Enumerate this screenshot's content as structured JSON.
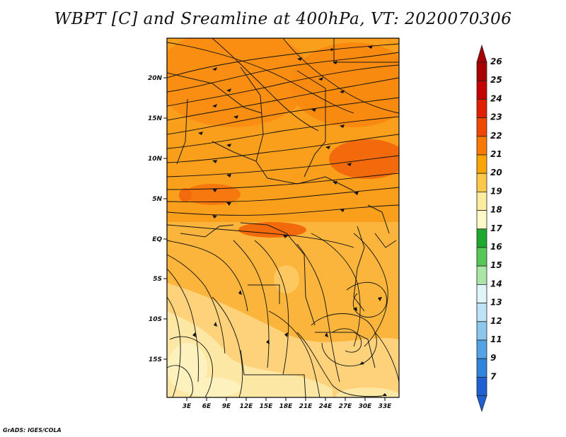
{
  "title": "WBPT [C] and Sreamline at 400hPa, VT: 2020070306",
  "credit": "GrADS: IGES/COLA",
  "map": {
    "lat_labels": [
      "20N",
      "15N",
      "10N",
      "5N",
      "EQ",
      "5S",
      "10S",
      "15S"
    ],
    "lon_labels": [
      "3E",
      "6E",
      "9E",
      "12E",
      "15E",
      "18E",
      "21E",
      "24E",
      "27E",
      "30E",
      "33E"
    ]
  },
  "colorbar": {
    "labels": [
      "26",
      "25",
      "24",
      "23",
      "22",
      "21",
      "20",
      "19",
      "18",
      "17",
      "16",
      "15",
      "14",
      "13",
      "12",
      "11",
      "9",
      "7"
    ],
    "colors": [
      "#a80000",
      "#c40000",
      "#e01e00",
      "#f04800",
      "#f87800",
      "#fba500",
      "#fdc84a",
      "#fdeba0",
      "#fefac8",
      "#1fa82e",
      "#56c858",
      "#aae6a8",
      "#e0f5fa",
      "#bfe3f6",
      "#8cc5ee",
      "#55a3e4",
      "#2f84dc",
      "#1f61d2"
    ],
    "top_arrow_color": "#a80000",
    "bottom_arrow_color": "#1f61d2"
  }
}
